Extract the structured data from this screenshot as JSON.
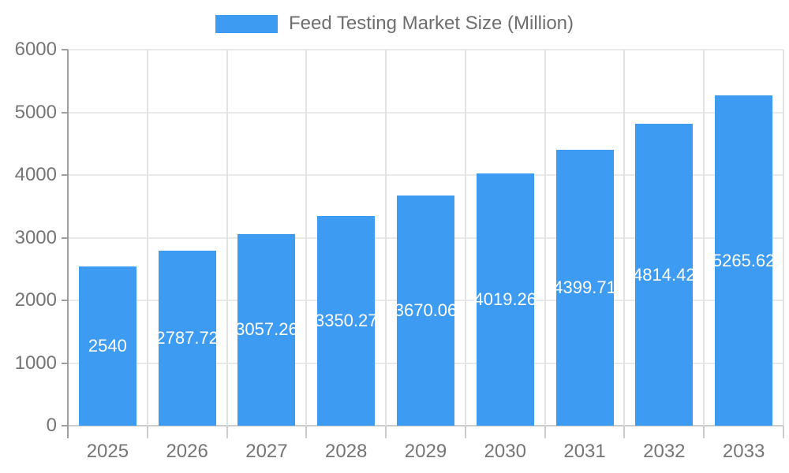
{
  "chart_data": {
    "type": "bar",
    "title": "Feed Testing Market Size (Million)",
    "categories": [
      "2025",
      "2026",
      "2027",
      "2028",
      "2029",
      "2030",
      "2031",
      "2032",
      "2033"
    ],
    "values": [
      2540,
      2787.72,
      3057.26,
      3350.27,
      3670.06,
      4019.26,
      4399.71,
      4814.42,
      5265.62
    ],
    "bar_labels": [
      "2540",
      "2787.72",
      "3057.26",
      "3350.27",
      "3670.06",
      "4019.26",
      "4399.71",
      "4814.42",
      "5265.62"
    ],
    "series_name": "Feed Testing Market Size (Million)",
    "xlabel": "",
    "ylabel": "",
    "ylim": [
      0,
      6000
    ],
    "y_ticks": [
      0,
      1000,
      2000,
      3000,
      4000,
      5000,
      6000
    ],
    "legend_position": "top",
    "grid": true,
    "colors": {
      "bar": "#3e9bf2",
      "bar_label_text": "#ffffff",
      "axis_text": "#757575",
      "title_text": "#6e6e6e",
      "grid_vertical": "#e2e2e2",
      "grid_horizontal": "#e9e9e9",
      "axis_line": "#9e9e9e",
      "baseline": "#cccccc",
      "background": "#ffffff"
    }
  }
}
